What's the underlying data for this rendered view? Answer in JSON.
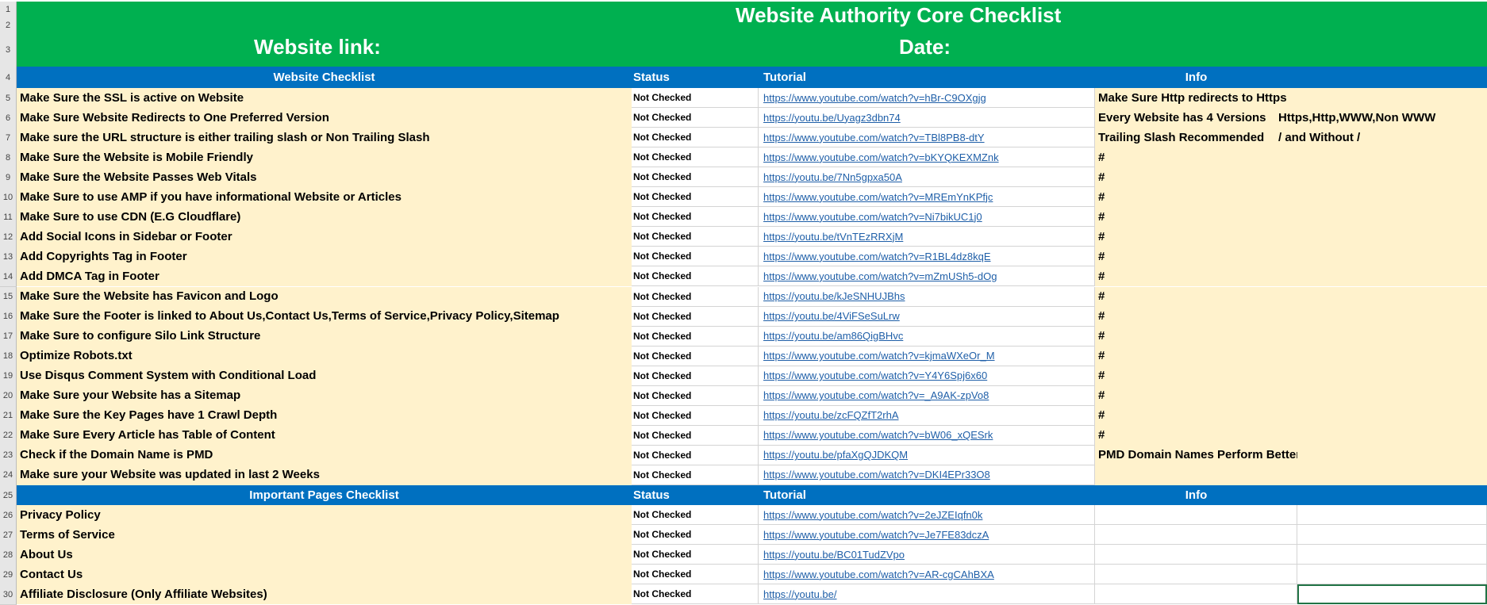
{
  "header": {
    "title": "Website Authority Core Checklist",
    "website_link_label": "Website link:",
    "date_label": "Date:"
  },
  "colors": {
    "title_band": "#00b050",
    "section_header": "#0070c0",
    "item_fill": "#fff2cc",
    "link": "#1f5fa8"
  },
  "row_numbers": [
    "1",
    "2",
    "3",
    "4",
    "5",
    "6",
    "7",
    "8",
    "9",
    "10",
    "11",
    "12",
    "13",
    "14",
    "15",
    "16",
    "17",
    "18",
    "19",
    "20",
    "21",
    "22",
    "23",
    "24",
    "25",
    "26",
    "27",
    "28",
    "29",
    "30"
  ],
  "sections": [
    {
      "headers": {
        "checklist": "Website Checklist",
        "status": "Status",
        "tutorial": "Tutorial",
        "info": "Info"
      },
      "rows": [
        {
          "item": "Make Sure the SSL is active on Website",
          "status": "Not Checked",
          "link": "https://www.youtube.com/watch?v=hBr-C9OXgjg",
          "info": "Make Sure Http redirects to Https"
        },
        {
          "item": "Make Sure Website Redirects to One Preferred Version",
          "status": "Not Checked",
          "link": "https://youtu.be/Uyagz3dbn74",
          "info": "Every Website has 4 Versions",
          "info2": "Https,Http,WWW,Non WWW"
        },
        {
          "item": "Make sure the URL structure is either trailing slash or Non Trailing Slash",
          "status": "Not Checked",
          "link": "https://www.youtube.com/watch?v=TBl8PB8-dtY",
          "info": "Trailing Slash Recommended",
          "info2": "/ and Without /"
        },
        {
          "item": "Make Sure the Website is Mobile Friendly",
          "status": "Not Checked",
          "link": "https://www.youtube.com/watch?v=bKYQKEXMZnk",
          "info": "#"
        },
        {
          "item": "Make Sure the Website Passes Web Vitals",
          "status": "Not Checked",
          "link": "https://youtu.be/7Nn5gpxa50A",
          "info": "#"
        },
        {
          "item": "Make Sure to use AMP if you have informational Website or Articles",
          "status": "Not Checked",
          "link": "https://www.youtube.com/watch?v=MREmYnKPfjc",
          "info": "#"
        },
        {
          "item": "Make Sure to use CDN (E.G Cloudflare)",
          "status": "Not Checked",
          "link": "https://www.youtube.com/watch?v=Ni7bikUC1j0",
          "info": "#"
        },
        {
          "item": "Add Social Icons in Sidebar or Footer",
          "status": "Not Checked",
          "link": "https://youtu.be/tVnTEzRRXjM",
          "info": "#"
        },
        {
          "item": "Add Copyrights Tag in Footer",
          "status": "Not Checked",
          "link": "https://www.youtube.com/watch?v=R1BL4dz8kqE",
          "info": "#"
        },
        {
          "item": "Add DMCA Tag in Footer",
          "status": "Not Checked",
          "link": "https://www.youtube.com/watch?v=mZmUSh5-dOg",
          "info": "#"
        },
        {
          "item": "Make Sure the Website has Favicon and Logo",
          "status": "Not Checked",
          "link": "https://youtu.be/kJeSNHUJBhs",
          "info": "#"
        },
        {
          "item": "Make Sure the Footer is linked to About Us,Contact Us,Terms of Service,Privacy Policy,Sitemap",
          "status": "Not Checked",
          "link": "https://youtu.be/4ViFSeSuLrw",
          "info": "#"
        },
        {
          "item": "Make Sure to configure Silo Link Structure",
          "status": "Not Checked",
          "link": "https://youtu.be/am86QigBHvc",
          "info": "#"
        },
        {
          "item": "Optimize Robots.txt",
          "status": "Not Checked",
          "link": "https://www.youtube.com/watch?v=kjmaWXeOr_M",
          "info": "#"
        },
        {
          "item": "Use Disqus Comment System with Conditional Load",
          "status": "Not Checked",
          "link": "https://www.youtube.com/watch?v=Y4Y6Spj6x60",
          "info": "#"
        },
        {
          "item": "Make Sure your Website has a Sitemap",
          "status": "Not Checked",
          "link": "https://www.youtube.com/watch?v=_A9AK-zpVo8",
          "info": "#"
        },
        {
          "item": "Make Sure the Key Pages have 1 Crawl Depth",
          "status": "Not Checked",
          "link": "https://youtu.be/zcFQZfT2rhA",
          "info": "#"
        },
        {
          "item": "Make Sure Every Article has Table of Content",
          "status": "Not Checked",
          "link": "https://www.youtube.com/watch?v=bW06_xQESrk",
          "info": "#"
        },
        {
          "item": "Check if the Domain Name is PMD",
          "status": "Not Checked",
          "link": "https://youtu.be/pfaXgQJDKQM",
          "info": "PMD Domain Names Perform Better than EMD and Brand"
        },
        {
          "item": "Make sure your Website was updated in last 2 Weeks",
          "status": "Not Checked",
          "link": "https://www.youtube.com/watch?v=DKI4EPr33O8",
          "info": ""
        }
      ]
    },
    {
      "headers": {
        "checklist": "Important Pages Checklist",
        "status": "Status",
        "tutorial": "Tutorial",
        "info": "Info"
      },
      "rows": [
        {
          "item": "Privacy Policy",
          "status": "Not Checked",
          "link": "https://www.youtube.com/watch?v=2eJZEIqfn0k",
          "info": ""
        },
        {
          "item": "Terms of Service",
          "status": "Not Checked",
          "link": "https://www.youtube.com/watch?v=Je7FE83dczA",
          "info": ""
        },
        {
          "item": "About Us",
          "status": "Not Checked",
          "link": "https://youtu.be/BC01TudZVpo",
          "info": ""
        },
        {
          "item": "Contact Us",
          "status": "Not Checked",
          "link": "https://www.youtube.com/watch?v=AR-cgCAhBXA",
          "info": ""
        },
        {
          "item": "Affiliate Disclosure (Only Affiliate Websites)",
          "status": "Not Checked",
          "link": "https://youtu.be/",
          "info": ""
        }
      ]
    }
  ]
}
